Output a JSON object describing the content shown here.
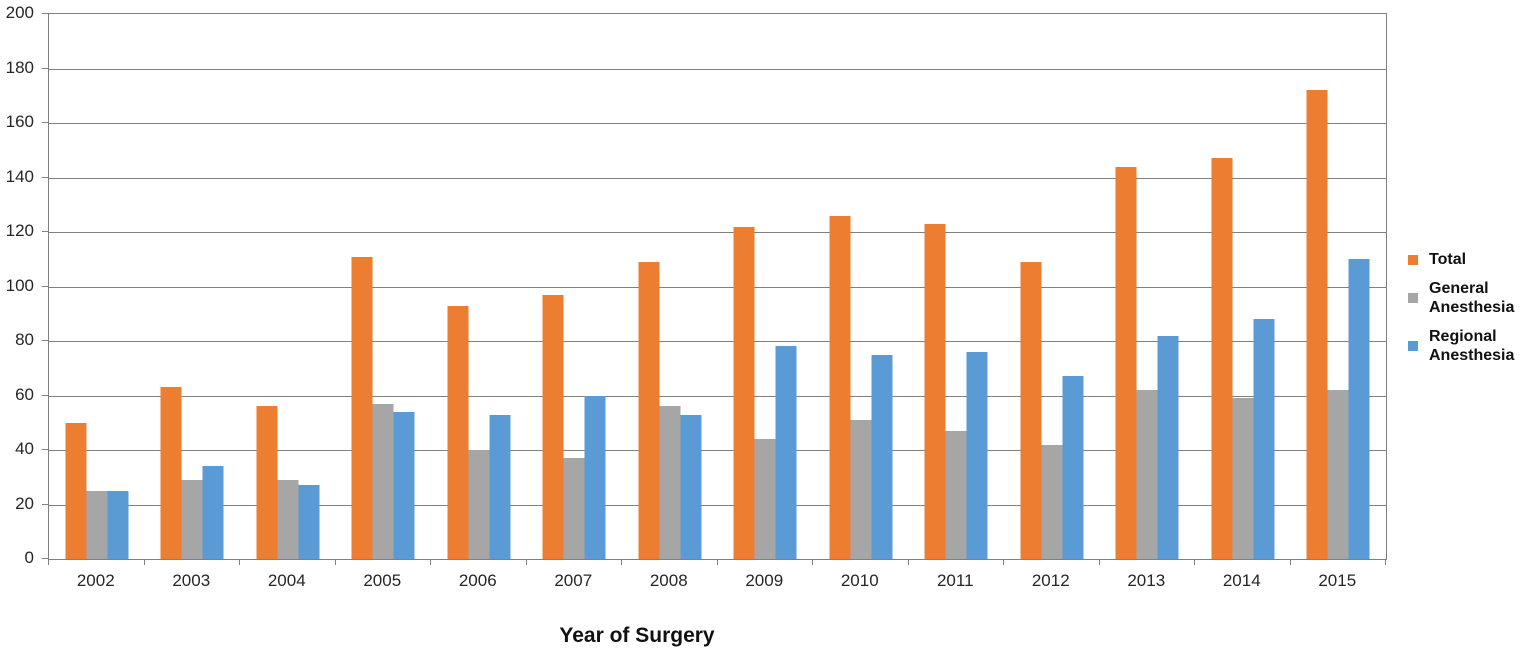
{
  "chart_data": {
    "type": "bar",
    "title": "",
    "xlabel": "Year of Surgery",
    "ylabel": "",
    "ylim": [
      0,
      200
    ],
    "ytick_step": 20,
    "yticks": [
      0,
      20,
      40,
      60,
      80,
      100,
      120,
      140,
      160,
      180,
      200
    ],
    "grid": true,
    "legend_position": "right",
    "categories": [
      "2002",
      "2003",
      "2004",
      "2005",
      "2006",
      "2007",
      "2008",
      "2009",
      "2010",
      "2011",
      "2012",
      "2013",
      "2014",
      "2015"
    ],
    "series": [
      {
        "name": "Total",
        "color": "#ED7D31",
        "values": [
          50,
          63,
          56,
          111,
          93,
          97,
          109,
          122,
          126,
          123,
          109,
          144,
          147,
          172
        ]
      },
      {
        "name": "General Anesthesia",
        "color": "#A6A6A6",
        "values": [
          25,
          29,
          29,
          57,
          40,
          37,
          56,
          44,
          51,
          47,
          42,
          62,
          59,
          62
        ]
      },
      {
        "name": "Regional Anesthesia",
        "color": "#5B9BD5",
        "values": [
          25,
          34,
          27,
          54,
          53,
          60,
          53,
          78,
          75,
          76,
          67,
          82,
          88,
          110
        ]
      }
    ],
    "axis_color": "#808080",
    "text_color": "#262626"
  }
}
